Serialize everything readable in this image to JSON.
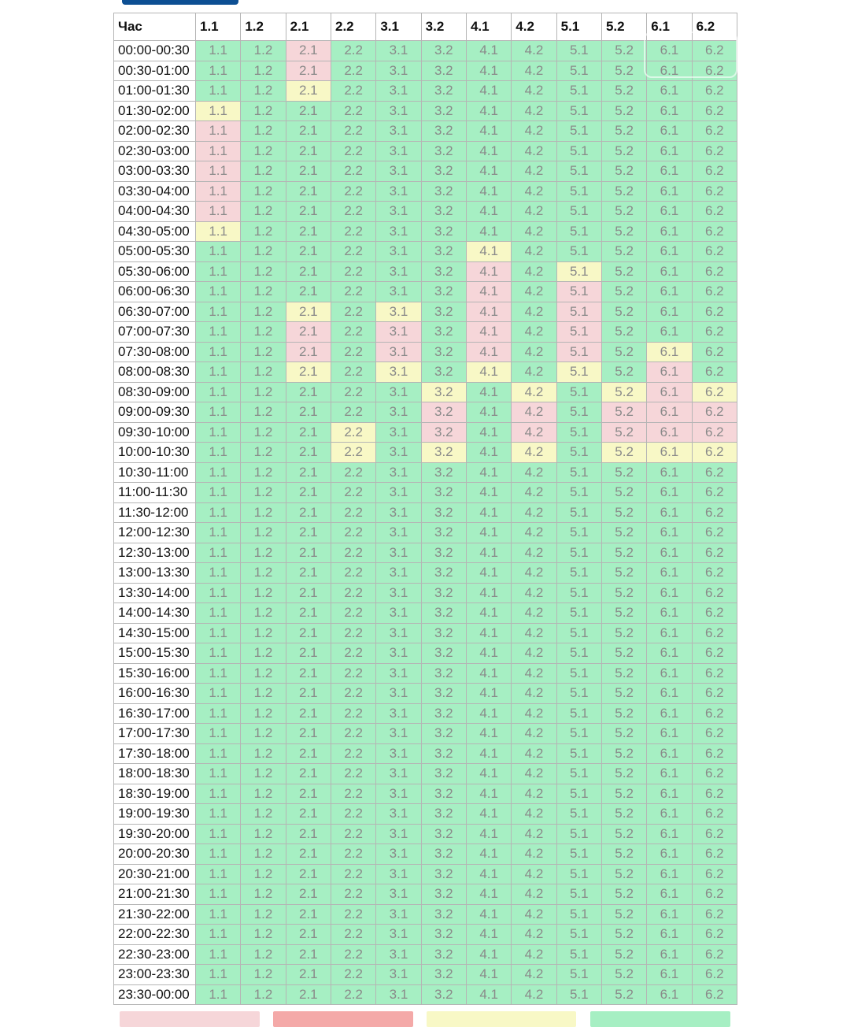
{
  "header": {
    "time_label": "Час",
    "groups": [
      "1.1",
      "1.2",
      "2.1",
      "2.2",
      "3.1",
      "3.2",
      "4.1",
      "4.2",
      "5.1",
      "5.2",
      "6.1",
      "6.2"
    ]
  },
  "status_colors": {
    "g": "#a6efc3",
    "r": "#f6d6d9",
    "y": "#f8f8c6"
  },
  "rows": [
    {
      "time": "00:00-00:30",
      "states": "ggrggggggggg"
    },
    {
      "time": "00:30-01:00",
      "states": "ggrggggggggg"
    },
    {
      "time": "01:00-01:30",
      "states": "ggyggggggggg"
    },
    {
      "time": "01:30-02:00",
      "states": "yggggggggggg"
    },
    {
      "time": "02:00-02:30",
      "states": "rggggggggggg"
    },
    {
      "time": "02:30-03:00",
      "states": "rggggggggggg"
    },
    {
      "time": "03:00-03:30",
      "states": "rggggggggggg"
    },
    {
      "time": "03:30-04:00",
      "states": "rggggggggggg"
    },
    {
      "time": "04:00-04:30",
      "states": "rggggggggggg"
    },
    {
      "time": "04:30-05:00",
      "states": "yggggggggggg"
    },
    {
      "time": "05:00-05:30",
      "states": "ggggggyggggg"
    },
    {
      "time": "05:30-06:00",
      "states": "ggggggrgyggg"
    },
    {
      "time": "06:00-06:30",
      "states": "ggggggrgrggg"
    },
    {
      "time": "06:30-07:00",
      "states": "ggygygrgrggg"
    },
    {
      "time": "07:00-07:30",
      "states": "ggrgrgrgrggg"
    },
    {
      "time": "07:30-08:00",
      "states": "ggrgrgrgrgyg"
    },
    {
      "time": "08:00-08:30",
      "states": "ggygygygygrg"
    },
    {
      "time": "08:30-09:00",
      "states": "gggggygygyry"
    },
    {
      "time": "09:00-09:30",
      "states": "gggggrgrgrrr"
    },
    {
      "time": "09:30-10:00",
      "states": "gggygrgrgrrr"
    },
    {
      "time": "10:00-10:30",
      "states": "gggygygygyyy"
    },
    {
      "time": "10:30-11:00",
      "states": "gggggggggggg"
    },
    {
      "time": "11:00-11:30",
      "states": "gggggggggggg"
    },
    {
      "time": "11:30-12:00",
      "states": "gggggggggggg"
    },
    {
      "time": "12:00-12:30",
      "states": "gggggggggggg"
    },
    {
      "time": "12:30-13:00",
      "states": "gggggggggggg"
    },
    {
      "time": "13:00-13:30",
      "states": "gggggggggggg"
    },
    {
      "time": "13:30-14:00",
      "states": "gggggggggggg"
    },
    {
      "time": "14:00-14:30",
      "states": "gggggggggggg"
    },
    {
      "time": "14:30-15:00",
      "states": "gggggggggggg"
    },
    {
      "time": "15:00-15:30",
      "states": "gggggggggggg"
    },
    {
      "time": "15:30-16:00",
      "states": "gggggggggggg"
    },
    {
      "time": "16:00-16:30",
      "states": "gggggggggggg"
    },
    {
      "time": "16:30-17:00",
      "states": "gggggggggggg"
    },
    {
      "time": "17:00-17:30",
      "states": "gggggggggggg"
    },
    {
      "time": "17:30-18:00",
      "states": "gggggggggggg"
    },
    {
      "time": "18:00-18:30",
      "states": "gggggggggggg"
    },
    {
      "time": "18:30-19:00",
      "states": "gggggggggggg"
    },
    {
      "time": "19:00-19:30",
      "states": "gggggggggggg"
    },
    {
      "time": "19:30-20:00",
      "states": "gggggggggggg"
    },
    {
      "time": "20:00-20:30",
      "states": "gggggggggggg"
    },
    {
      "time": "20:30-21:00",
      "states": "gggggggggggg"
    },
    {
      "time": "21:00-21:30",
      "states": "gggggggggggg"
    },
    {
      "time": "21:30-22:00",
      "states": "gggggggggggg"
    },
    {
      "time": "22:00-22:30",
      "states": "gggggggggggg"
    },
    {
      "time": "22:30-23:00",
      "states": "gggggggggggg"
    },
    {
      "time": "23:00-23:30",
      "states": "gggggggggggg"
    },
    {
      "time": "23:30-00:00",
      "states": "gggggggggggg"
    }
  ],
  "legend": [
    {
      "color": "#f6d6d9"
    },
    {
      "color": "#f4a9a8"
    },
    {
      "color": "#f8f8c6"
    },
    {
      "color": "#a6efc3"
    }
  ]
}
